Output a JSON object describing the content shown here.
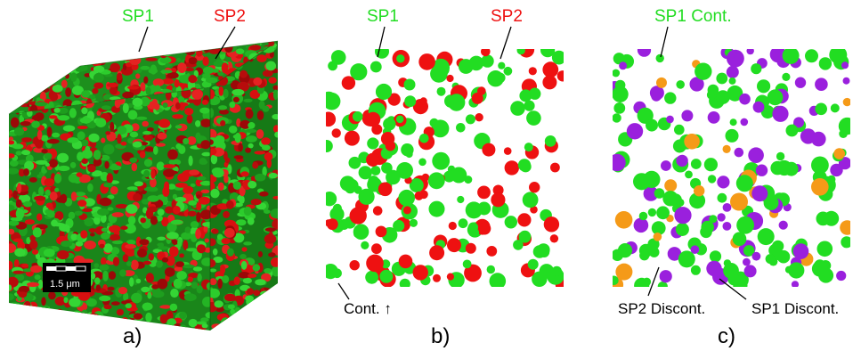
{
  "colors": {
    "sp1": "#22dd22",
    "sp2": "#ee1111",
    "sp1_dark": "#138a13",
    "sp2_dark": "#8f0a0a",
    "disc_purple": "#9a20dd",
    "disc_orange": "#f59a18",
    "text": "#000000"
  },
  "panel_a": {
    "label_sp1": "SP1",
    "label_sp2": "SP2",
    "scale_bar": "1.5 μm",
    "caption": "a)"
  },
  "panel_b": {
    "label_sp1": "SP1",
    "label_sp2": "SP2",
    "label_cont": "Cont. ↑",
    "caption": "b)"
  },
  "panel_c": {
    "label_sp1_cont": "SP1 Cont.",
    "label_sp2_disc": "SP2 Discont.",
    "label_sp1_disc": "SP1 Discont.",
    "caption": "c)"
  }
}
